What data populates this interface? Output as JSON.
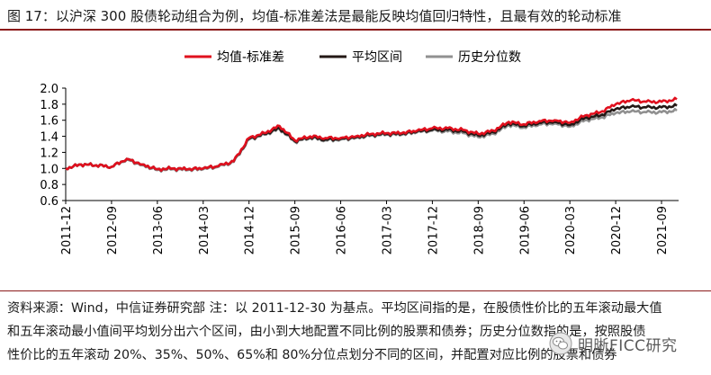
{
  "header": {
    "title": "图 17：以沪深 300 股债轮动组合为例，均值-标准差法是最能反映均值回归特性，且最有效的轮动标准"
  },
  "chart_data": {
    "type": "line",
    "x": [
      "2011-12",
      "2012-03",
      "2012-06",
      "2012-09",
      "2012-12",
      "2013-03",
      "2013-06",
      "2013-09",
      "2013-12",
      "2014-03",
      "2014-06",
      "2014-09",
      "2014-12",
      "2015-03",
      "2015-06",
      "2015-09",
      "2015-12",
      "2016-03",
      "2016-06",
      "2016-09",
      "2016-12",
      "2017-03",
      "2017-06",
      "2017-09",
      "2017-12",
      "2018-03",
      "2018-06",
      "2018-09",
      "2018-12",
      "2019-03",
      "2019-06",
      "2019-09",
      "2019-12",
      "2020-03",
      "2020-06",
      "2020-09",
      "2020-12",
      "2021-03",
      "2021-06",
      "2021-09",
      "2021-12"
    ],
    "tick_labels": [
      "2011-12",
      "2012-09",
      "2013-06",
      "2014-03",
      "2014-12",
      "2015-09",
      "2016-06",
      "2017-03",
      "2017-12",
      "2018-09",
      "2019-06",
      "2020-03",
      "2020-12",
      "2021-09"
    ],
    "series": [
      {
        "name": "均值-标准差",
        "color": "#e0101e",
        "values": [
          1.0,
          1.05,
          1.04,
          1.02,
          1.12,
          1.05,
          0.99,
          1.0,
          0.99,
          1.0,
          1.03,
          1.09,
          1.38,
          1.44,
          1.53,
          1.35,
          1.4,
          1.38,
          1.38,
          1.4,
          1.43,
          1.44,
          1.44,
          1.47,
          1.5,
          1.5,
          1.48,
          1.43,
          1.47,
          1.58,
          1.55,
          1.59,
          1.6,
          1.57,
          1.66,
          1.7,
          1.8,
          1.85,
          1.83,
          1.83,
          1.86
        ]
      },
      {
        "name": "平均区间",
        "color": "#231815",
        "values": [
          1.0,
          1.05,
          1.04,
          1.02,
          1.12,
          1.05,
          0.99,
          1.0,
          0.99,
          1.0,
          1.03,
          1.09,
          1.37,
          1.43,
          1.5,
          1.34,
          1.39,
          1.36,
          1.37,
          1.39,
          1.42,
          1.43,
          1.43,
          1.46,
          1.48,
          1.48,
          1.46,
          1.41,
          1.45,
          1.56,
          1.53,
          1.57,
          1.58,
          1.54,
          1.63,
          1.66,
          1.74,
          1.77,
          1.76,
          1.76,
          1.78
        ]
      },
      {
        "name": "历史分位数",
        "color": "#909090",
        "values": [
          1.0,
          1.05,
          1.04,
          1.02,
          1.11,
          1.04,
          0.98,
          0.99,
          0.98,
          0.99,
          1.02,
          1.08,
          1.36,
          1.42,
          1.49,
          1.33,
          1.38,
          1.35,
          1.36,
          1.38,
          1.41,
          1.42,
          1.42,
          1.45,
          1.47,
          1.46,
          1.44,
          1.39,
          1.43,
          1.54,
          1.51,
          1.55,
          1.56,
          1.52,
          1.6,
          1.63,
          1.69,
          1.71,
          1.7,
          1.7,
          1.72
        ]
      }
    ],
    "y_ticks": [
      "2.0",
      "1.8",
      "1.6",
      "1.4",
      "1.2",
      "1.0",
      "0.8",
      "0.6"
    ],
    "ylim": [
      0.6,
      2.0
    ],
    "legend_position": "top-center",
    "grid": false
  },
  "source": {
    "lines": [
      "资料来源：Wind，中信证券研究部  注：以 2011-12-30 为基点。平均区间指的是，在股债性价比的五年滚动最大值",
      "和五年滚动最小值间平均划分出六个区间，由小到大地配置不同比例的股票和债券；历史分位数指的是，按照股债",
      "性价比的五年滚动 20%、35%、50%、65%和 80%分位点划分不同的区间，并配置对应比例的股票和债券"
    ]
  },
  "watermark": {
    "text": "明晰FICC研究",
    "icon": "wechat-icon"
  }
}
